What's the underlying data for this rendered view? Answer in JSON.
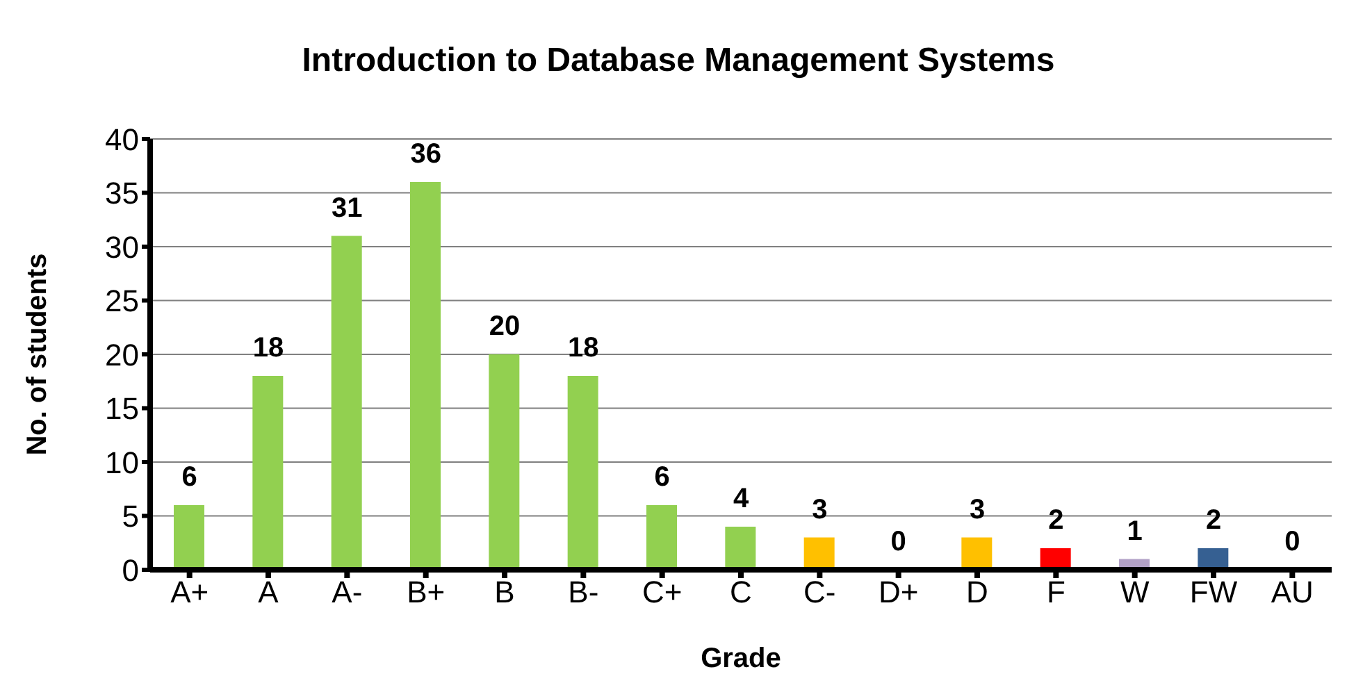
{
  "chart_data": {
    "type": "bar",
    "title": "Introduction to Database Management Systems",
    "xlabel": "Grade",
    "ylabel": "No. of students",
    "categories": [
      "A+",
      "A",
      "A-",
      "B+",
      "B",
      "B-",
      "C+",
      "C",
      "C-",
      "D+",
      "D",
      "F",
      "W",
      "FW",
      "AU"
    ],
    "values": [
      6,
      18,
      31,
      36,
      20,
      18,
      6,
      4,
      3,
      0,
      3,
      2,
      1,
      2,
      0
    ],
    "colors": [
      "#92d050",
      "#92d050",
      "#92d050",
      "#92d050",
      "#92d050",
      "#92d050",
      "#92d050",
      "#92d050",
      "#ffc000",
      "#92d050",
      "#ffc000",
      "#ff0000",
      "#b3a2c7",
      "#366092",
      "#92d050"
    ],
    "ylim": [
      0,
      40
    ],
    "yticks": [
      0,
      5,
      10,
      15,
      20,
      25,
      30,
      35,
      40
    ],
    "grid": "y",
    "data_labels": true,
    "legend": false
  }
}
